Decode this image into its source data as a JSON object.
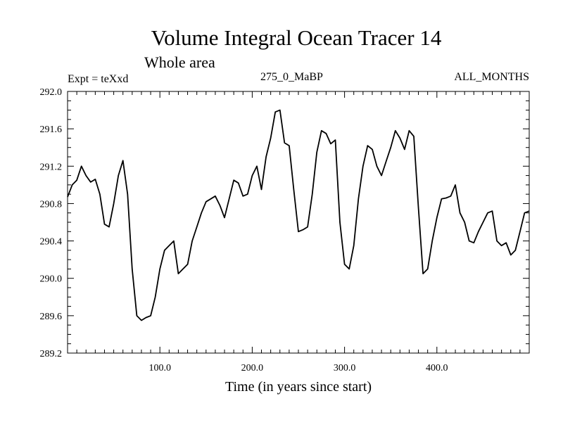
{
  "chart_data": {
    "type": "line",
    "title": "Volume Integral Ocean Tracer 14",
    "subtitle": "Whole area",
    "annotations": {
      "left": "Expt = teXxd",
      "center": "275_0_MaBP",
      "right": "ALL_MONTHS"
    },
    "xlabel": "Time (in years since start)",
    "ylabel": "",
    "xlim": [
      0,
      500
    ],
    "ylim": [
      289.2,
      292.0
    ],
    "x_ticks": [
      100,
      200,
      300,
      400
    ],
    "x_tick_labels": [
      "100.0",
      "200.0",
      "300.0",
      "400.0"
    ],
    "y_ticks": [
      289.2,
      289.6,
      290.0,
      290.4,
      290.8,
      291.2,
      291.6,
      292.0
    ],
    "y_tick_labels": [
      "289.2",
      "289.6",
      "290.0",
      "290.4",
      "290.8",
      "291.2",
      "291.6",
      "292.0"
    ],
    "grid": false,
    "series": [
      {
        "name": "Volume Integral Ocean Tracer 14",
        "color": "#000000",
        "x": [
          0,
          5,
          10,
          15,
          20,
          25,
          30,
          35,
          40,
          45,
          50,
          55,
          60,
          65,
          70,
          75,
          80,
          85,
          90,
          95,
          100,
          105,
          110,
          115,
          120,
          125,
          130,
          135,
          140,
          145,
          150,
          155,
          160,
          165,
          170,
          175,
          180,
          185,
          190,
          195,
          200,
          205,
          210,
          215,
          220,
          225,
          230,
          235,
          240,
          245,
          250,
          255,
          260,
          265,
          270,
          275,
          280,
          285,
          290,
          295,
          300,
          305,
          310,
          315,
          320,
          325,
          330,
          335,
          340,
          345,
          350,
          355,
          360,
          365,
          370,
          375,
          380,
          385,
          390,
          395,
          400,
          405,
          410,
          415,
          420,
          425,
          430,
          435,
          440,
          445,
          450,
          455,
          460,
          465,
          470,
          475,
          480,
          485,
          490,
          495,
          500
        ],
        "values": [
          290.87,
          291.0,
          291.05,
          291.2,
          291.1,
          291.03,
          291.06,
          290.9,
          290.58,
          290.55,
          290.8,
          291.1,
          291.26,
          290.9,
          290.1,
          289.6,
          289.55,
          289.58,
          289.6,
          289.8,
          290.1,
          290.3,
          290.35,
          290.4,
          290.05,
          290.1,
          290.15,
          290.4,
          290.55,
          290.7,
          290.82,
          290.85,
          290.88,
          290.78,
          290.65,
          290.85,
          291.05,
          291.02,
          290.88,
          290.9,
          291.1,
          291.2,
          290.95,
          291.3,
          291.5,
          291.78,
          291.8,
          291.45,
          291.42,
          290.95,
          290.5,
          290.52,
          290.55,
          290.9,
          291.35,
          291.58,
          291.55,
          291.44,
          291.48,
          290.6,
          290.15,
          290.1,
          290.35,
          290.85,
          291.2,
          291.42,
          291.38,
          291.2,
          291.1,
          291.25,
          291.4,
          291.58,
          291.5,
          291.38,
          291.58,
          291.52,
          290.75,
          290.05,
          290.1,
          290.4,
          290.65,
          290.85,
          290.86,
          290.88,
          291.0,
          290.7,
          290.6,
          290.4,
          290.38,
          290.5,
          290.6,
          290.7,
          290.72,
          290.4,
          290.35,
          290.38,
          290.25,
          290.3,
          290.5,
          290.7,
          290.72
        ]
      }
    ]
  }
}
